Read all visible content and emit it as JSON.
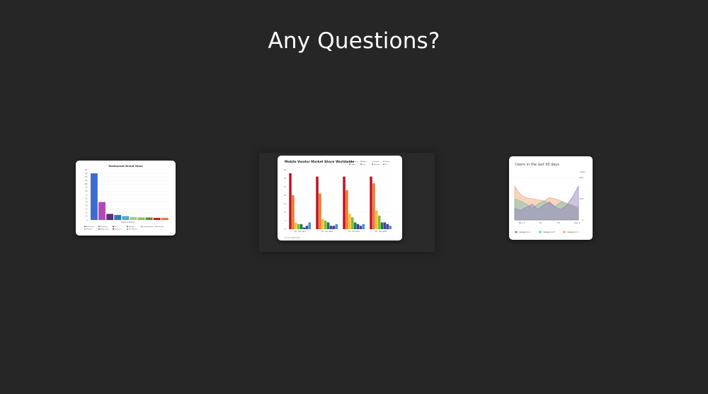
{
  "slide": {
    "title": "Any Questions?"
  },
  "thumbnails": [
    {
      "chart_data": {
        "type": "bar",
        "title": "Restaurant Brand Value",
        "xlabel": "Value in billions",
        "ylabel": "",
        "ylim": [
          0,
          140
        ],
        "yticks": [
          "140",
          "130",
          "120",
          "110",
          "100",
          "90",
          "80",
          "70",
          "60",
          "50",
          "40",
          "30",
          "20",
          "10",
          "0"
        ],
        "values": [
          130,
          50,
          17,
          14,
          11,
          8,
          7,
          7,
          6,
          6
        ],
        "colors": [
          "#3d6cd0",
          "#b04bb4",
          "#5c2f7a",
          "#2f78b8",
          "#4cb0c9",
          "#9bd08a",
          "#8fbf58",
          "#5d8f3f",
          "#c21d2d",
          "#e67a33"
        ],
        "legend": [
          "McDonalds",
          "Starbucks",
          "KFC",
          "Subway",
          "Dunkin Donuts",
          "Pizza Hut",
          "Chipotle",
          "Burger King",
          "Domino's",
          "Tim Hortons"
        ],
        "legend_placement": "bottom",
        "grid": true
      }
    },
    {
      "chart_data": {
        "type": "bar",
        "title": "Mobile Vendor Market Share Worldwide",
        "categories": [
          "Jan - Dec 2017",
          "Jan - Dec 2018",
          "Jan - Dec 2019",
          "Jan - June 2020"
        ],
        "ylim": [
          0,
          35
        ],
        "yticks": [
          "35",
          "30",
          "25",
          "20",
          "15",
          "10",
          "5",
          "0"
        ],
        "series": [
          {
            "name": "Samsung",
            "color": "#c1121f",
            "values": [
              33,
              31,
              31,
              31
            ]
          },
          {
            "name": "Apple",
            "color": "#f0762a",
            "values": [
              20,
              21,
              23,
              27
            ]
          },
          {
            "name": "Huawei",
            "color": "#f2c12e",
            "values": [
              4,
              6,
              9,
              11
            ]
          },
          {
            "name": "Xiaomi",
            "color": "#7dbb3c",
            "values": [
              3,
              5,
              7,
              8
            ]
          },
          {
            "name": "Oppo",
            "color": "#1f7a4d",
            "values": [
              3,
              4,
              4,
              4
            ]
          },
          {
            "name": "Vivo",
            "color": "#2a4ea0",
            "values": [
              1,
              2,
              3,
              4
            ]
          },
          {
            "name": "Motorola",
            "color": "#5c3a8f",
            "values": [
              2,
              2,
              2,
              3
            ]
          },
          {
            "name": "LG",
            "color": "#4a90d9",
            "values": [
              4,
              3,
              3,
              2
            ]
          }
        ],
        "footer": "Source: StatCounter",
        "legend_placement": "top-right",
        "grid": true
      }
    },
    {
      "chart_data": {
        "type": "area",
        "title": "Users in the last 30 days",
        "ylabel": "Users",
        "ylim": [
          0,
          400
        ],
        "yticks": [
          "400",
          "200",
          "0"
        ],
        "x_ticks": [
          "Nov 3",
          "13",
          "23",
          "Dec 3"
        ],
        "series": [
          {
            "name": "Category A",
            "color": "#8e7cc3",
            "values": [
              110,
              90,
              120,
              150,
              100,
              140,
              170,
              120,
              100,
              140,
              220,
              320
            ]
          },
          {
            "name": "Category B",
            "color": "#6fbfa8",
            "values": [
              200,
              180,
              150,
              110,
              150,
              180,
              160,
              130,
              170,
              150,
              130,
              100
            ]
          },
          {
            "name": "Category C",
            "color": "#f2a070",
            "values": [
              320,
              240,
              210,
              200,
              190,
              180,
              210,
              200,
              180,
              160,
              140,
              120
            ]
          }
        ],
        "legend_placement": "bottom",
        "grid": true
      }
    }
  ]
}
